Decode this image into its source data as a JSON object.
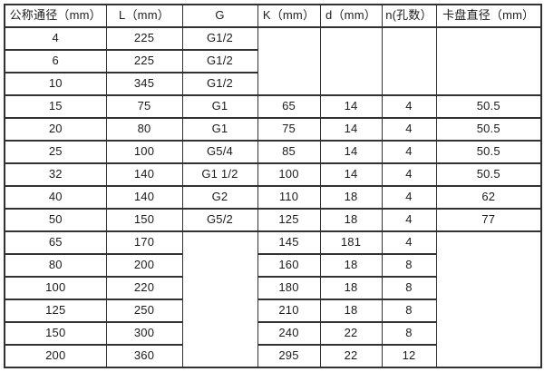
{
  "colors": {
    "border": "#323232",
    "text": "#1c1c1c",
    "background": "#ffffff"
  },
  "table": {
    "headers": [
      "公称通径（mm）",
      "L（mm）",
      "G",
      "K（mm）",
      "d（mm）",
      "n(孔数）",
      "卡盘直径（mm）"
    ],
    "rows": [
      [
        "4",
        "225",
        "G1/2",
        {
          "t": "",
          "rs": 3
        },
        {
          "t": "",
          "rs": 3
        },
        {
          "t": "",
          "rs": 3
        },
        {
          "t": "",
          "rs": 3
        }
      ],
      [
        "6",
        "225",
        "G1/2",
        null,
        null,
        null,
        null
      ],
      [
        "10",
        "345",
        "G1/2",
        null,
        null,
        null,
        null
      ],
      [
        "15",
        "75",
        "G1",
        "65",
        "14",
        "4",
        "50.5"
      ],
      [
        "20",
        "80",
        "G1",
        "75",
        "14",
        "4",
        "50.5"
      ],
      [
        "25",
        "100",
        "G5/4",
        "85",
        "14",
        "4",
        "50.5"
      ],
      [
        "32",
        "140",
        "G1 1/2",
        "100",
        "14",
        "4",
        "50.5"
      ],
      [
        "40",
        "140",
        "G2",
        "110",
        "18",
        "4",
        "62"
      ],
      [
        "50",
        "150",
        "G5/2",
        "125",
        "18",
        "4",
        "77"
      ],
      [
        "65",
        "170",
        {
          "t": "",
          "rs": 7
        },
        "145",
        "181",
        "4",
        {
          "t": "",
          "rs": 7
        }
      ],
      [
        "80",
        "200",
        null,
        "160",
        "18",
        "8",
        null
      ],
      [
        "100",
        "220",
        null,
        "180",
        "18",
        "8",
        null
      ],
      [
        "125",
        "250",
        null,
        "210",
        "18",
        "8",
        null
      ],
      [
        "150",
        "300",
        null,
        "240",
        "22",
        "8",
        null
      ],
      [
        "200",
        "360",
        null,
        "295",
        "22",
        "12",
        null
      ]
    ]
  },
  "chart_data": {
    "type": "table",
    "columns": [
      "公称通径（mm）",
      "L（mm）",
      "G",
      "K（mm）",
      "d（mm）",
      "n(孔数）",
      "卡盘直径（mm）"
    ],
    "records": [
      {
        "公称通径": "4",
        "L": "225",
        "G": "G1/2",
        "K": "",
        "d": "",
        "n": "",
        "卡盘直径": ""
      },
      {
        "公称通径": "6",
        "L": "225",
        "G": "G1/2",
        "K": "",
        "d": "",
        "n": "",
        "卡盘直径": ""
      },
      {
        "公称通径": "10",
        "L": "345",
        "G": "G1/2",
        "K": "",
        "d": "",
        "n": "",
        "卡盘直径": ""
      },
      {
        "公称通径": "15",
        "L": "75",
        "G": "G1",
        "K": "65",
        "d": "14",
        "n": "4",
        "卡盘直径": "50.5"
      },
      {
        "公称通径": "20",
        "L": "80",
        "G": "G1",
        "K": "75",
        "d": "14",
        "n": "4",
        "卡盘直径": "50.5"
      },
      {
        "公称通径": "25",
        "L": "100",
        "G": "G5/4",
        "K": "85",
        "d": "14",
        "n": "4",
        "卡盘直径": "50.5"
      },
      {
        "公称通径": "32",
        "L": "140",
        "G": "G1 1/2",
        "K": "100",
        "d": "14",
        "n": "4",
        "卡盘直径": "50.5"
      },
      {
        "公称通径": "40",
        "L": "140",
        "G": "G2",
        "K": "110",
        "d": "18",
        "n": "4",
        "卡盘直径": "62"
      },
      {
        "公称通径": "50",
        "L": "150",
        "G": "G5/2",
        "K": "125",
        "d": "18",
        "n": "4",
        "卡盘直径": "77"
      },
      {
        "公称通径": "65",
        "L": "170",
        "G": "",
        "K": "145",
        "d": "181",
        "n": "4",
        "卡盘直径": ""
      },
      {
        "公称通径": "80",
        "L": "200",
        "G": "",
        "K": "160",
        "d": "18",
        "n": "8",
        "卡盘直径": ""
      },
      {
        "公称通径": "100",
        "L": "220",
        "G": "",
        "K": "180",
        "d": "18",
        "n": "8",
        "卡盘直径": ""
      },
      {
        "公称通径": "125",
        "L": "250",
        "G": "",
        "K": "210",
        "d": "18",
        "n": "8",
        "卡盘直径": ""
      },
      {
        "公称通径": "150",
        "L": "300",
        "G": "",
        "K": "240",
        "d": "22",
        "n": "8",
        "卡盘直径": ""
      },
      {
        "公称通径": "200",
        "L": "360",
        "G": "",
        "K": "295",
        "d": "22",
        "n": "12",
        "卡盘直径": ""
      }
    ]
  }
}
